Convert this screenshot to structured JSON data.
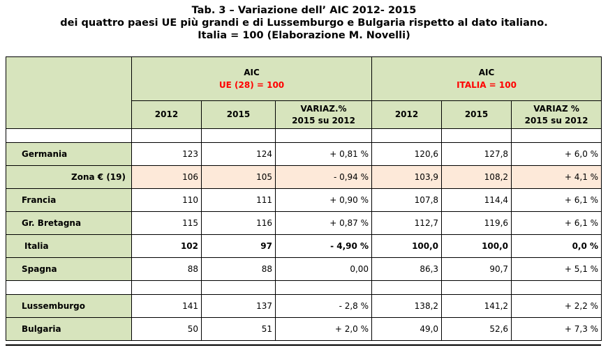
{
  "title": {
    "line1": "Tab. 3 –  Variazione  dell’  AIC 2012- 2015",
    "line2": "dei quattro paesi UE più grandi e di Lussemburgo e Bulgaria rispetto al dato italiano.",
    "line3": "Italia = 100 (Elaborazione M. Novelli)"
  },
  "headers": {
    "group1": {
      "label": "AIC",
      "sub": "UE (28) = 100"
    },
    "group2": {
      "label": "AIC",
      "sub": "ITALIA = 100"
    },
    "columns": {
      "y2012": "2012",
      "y2015": "2015",
      "variaz1_line1": "VARIAZ.%",
      "variaz1_line2": "2015 su 2012",
      "variaz2_line1": "VARIAZ %",
      "variaz2_line2": "2015 su 2012"
    }
  },
  "rows": [
    {
      "name": "Germania",
      "ue2012": "123",
      "ue2015": "124",
      "ue_var": "+ 0,81 %",
      "it2012": "120,6",
      "it2015": "127,8",
      "it_var": "+ 6,0 %"
    },
    {
      "name": "Zona € (19)",
      "ue2012": "106",
      "ue2015": "105",
      "ue_var": "- 0,94 %",
      "it2012": "103,9",
      "it2015": "108,2",
      "it_var": "+ 4,1 %"
    },
    {
      "name": "Francia",
      "ue2012": "110",
      "ue2015": "111",
      "ue_var": "+ 0,90 %",
      "it2012": "107,8",
      "it2015": "114,4",
      "it_var": "+ 6,1 %"
    },
    {
      "name": "Gr. Bretagna",
      "ue2012": "115",
      "ue2015": "116",
      "ue_var": "+ 0,87 %",
      "it2012": "112,7",
      "it2015": "119,6",
      "it_var": "+ 6,1 %"
    },
    {
      "name": "Italia",
      "ue2012": "102",
      "ue2015": "97",
      "ue_var": "- 4,90 %",
      "it2012": "100,0",
      "it2015": "100,0",
      "it_var": "0,0 %"
    },
    {
      "name": "Spagna",
      "ue2012": "88",
      "ue2015": "88",
      "ue_var": "0,00",
      "it2012": "86,3",
      "it2015": "90,7",
      "it_var": "+ 5,1 %"
    },
    {
      "name": "Lussemburgo",
      "ue2012": "141",
      "ue2015": "137",
      "ue_var": "- 2,8 %",
      "it2012": "138,2",
      "it2015": "141,2",
      "it_var": "+ 2,2 %"
    },
    {
      "name": "Bulgaria",
      "ue2012": "50",
      "ue2015": "51",
      "ue_var": "+ 2,0 %",
      "it2012": "49,0",
      "it2015": "52,6",
      "it_var": "+ 7,3 %"
    }
  ],
  "colors": {
    "green": "#d7e4bd",
    "pink": "#fde9d9",
    "red": "#ff0000"
  }
}
